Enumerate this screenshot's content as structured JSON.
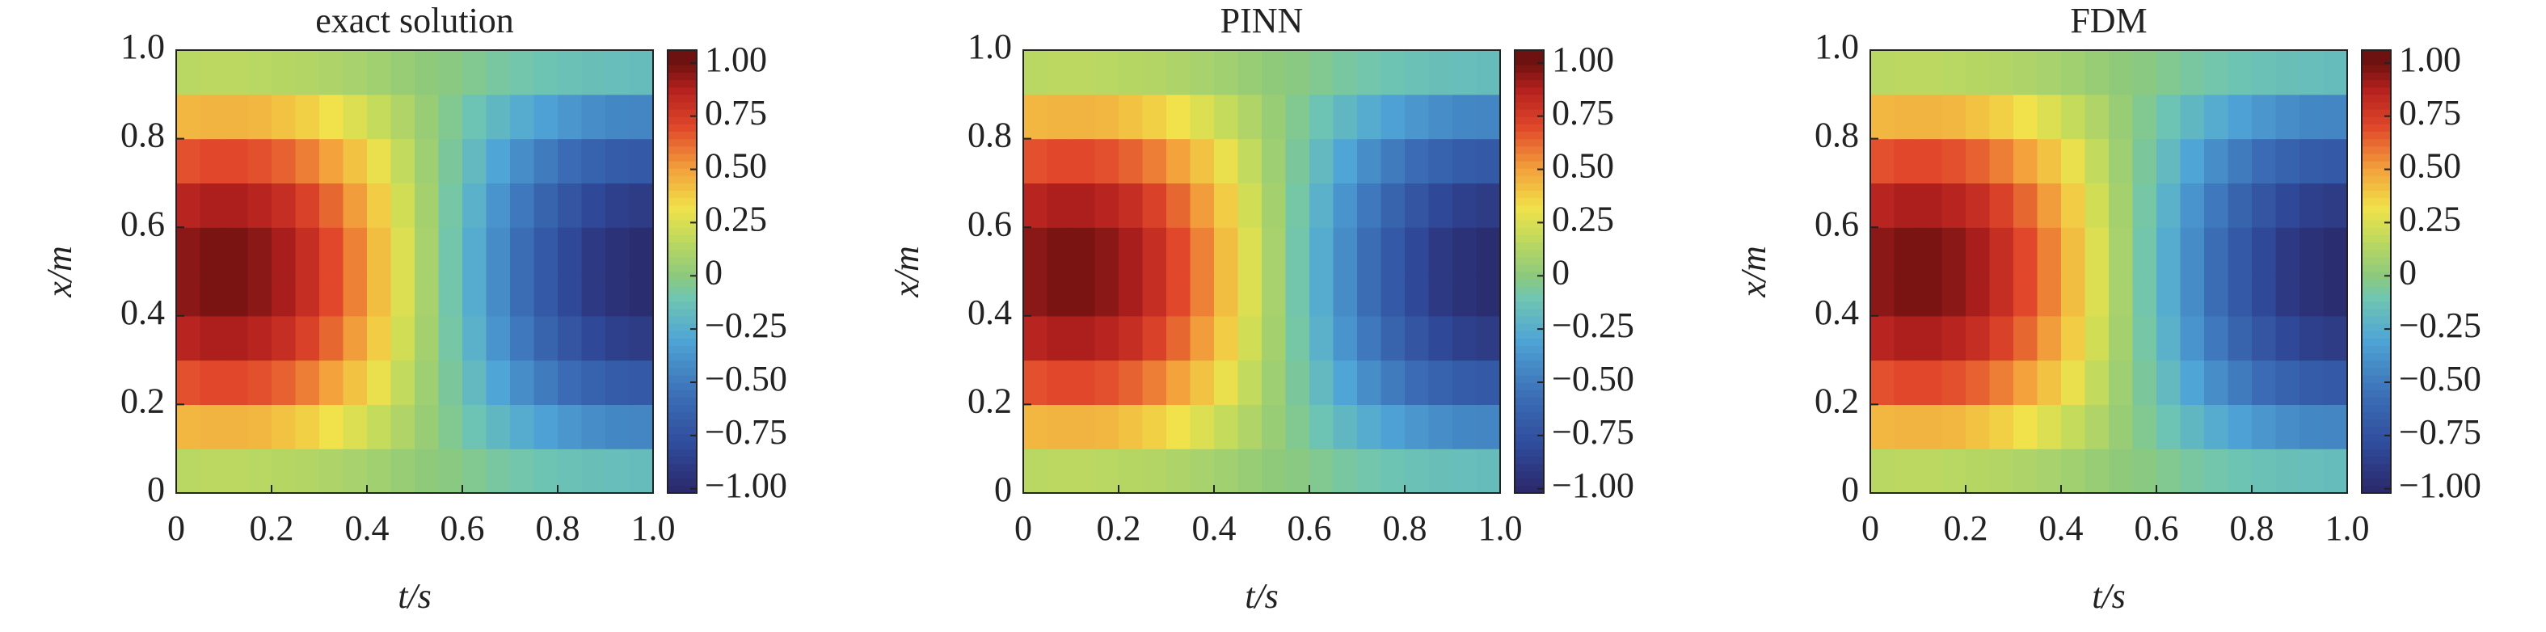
{
  "chart_data": [
    {
      "type": "heatmap",
      "title": "exact solution",
      "xlabel": "t/s",
      "ylabel": "x/m",
      "x": [
        0.025,
        0.075,
        0.125,
        0.175,
        0.225,
        0.275,
        0.325,
        0.375,
        0.425,
        0.475,
        0.525,
        0.575,
        0.625,
        0.675,
        0.725,
        0.775,
        0.825,
        0.875,
        0.925,
        0.975
      ],
      "y": [
        0.05,
        0.15,
        0.25,
        0.35,
        0.45,
        0.55,
        0.65,
        0.75,
        0.85,
        0.95
      ],
      "values": [
        [
          0.15,
          0.16,
          0.16,
          0.15,
          0.14,
          0.13,
          0.11,
          0.09,
          0.07,
          0.04,
          0.01,
          -0.01,
          -0.04,
          -0.07,
          -0.09,
          -0.11,
          -0.13,
          -0.14,
          -0.15,
          -0.16
        ],
        [
          0.44,
          0.45,
          0.45,
          0.44,
          0.41,
          0.37,
          0.32,
          0.26,
          0.19,
          0.12,
          0.04,
          -0.04,
          -0.12,
          -0.19,
          -0.26,
          -0.32,
          -0.37,
          -0.41,
          -0.44,
          -0.45
        ],
        [
          0.68,
          0.7,
          0.7,
          0.68,
          0.64,
          0.58,
          0.5,
          0.41,
          0.3,
          0.18,
          0.06,
          -0.06,
          -0.18,
          -0.3,
          -0.41,
          -0.5,
          -0.58,
          -0.64,
          -0.68,
          -0.7
        ],
        [
          0.86,
          0.89,
          0.89,
          0.86,
          0.81,
          0.73,
          0.63,
          0.51,
          0.38,
          0.23,
          0.08,
          -0.08,
          -0.23,
          -0.38,
          -0.51,
          -0.63,
          -0.73,
          -0.81,
          -0.86,
          -0.89
        ],
        [
          0.95,
          0.98,
          0.98,
          0.95,
          0.9,
          0.81,
          0.7,
          0.57,
          0.42,
          0.26,
          0.09,
          -0.09,
          -0.26,
          -0.42,
          -0.57,
          -0.7,
          -0.81,
          -0.9,
          -0.95,
          -0.98
        ],
        [
          0.95,
          0.98,
          0.98,
          0.95,
          0.9,
          0.81,
          0.7,
          0.57,
          0.42,
          0.26,
          0.09,
          -0.09,
          -0.26,
          -0.42,
          -0.57,
          -0.7,
          -0.81,
          -0.9,
          -0.95,
          -0.98
        ],
        [
          0.86,
          0.89,
          0.89,
          0.86,
          0.81,
          0.73,
          0.63,
          0.51,
          0.38,
          0.23,
          0.08,
          -0.08,
          -0.23,
          -0.38,
          -0.51,
          -0.63,
          -0.73,
          -0.81,
          -0.86,
          -0.89
        ],
        [
          0.68,
          0.7,
          0.7,
          0.68,
          0.64,
          0.58,
          0.5,
          0.41,
          0.3,
          0.18,
          0.06,
          -0.06,
          -0.18,
          -0.3,
          -0.41,
          -0.5,
          -0.58,
          -0.64,
          -0.68,
          -0.7
        ],
        [
          0.44,
          0.45,
          0.45,
          0.44,
          0.41,
          0.37,
          0.32,
          0.26,
          0.19,
          0.12,
          0.04,
          -0.04,
          -0.12,
          -0.19,
          -0.26,
          -0.32,
          -0.37,
          -0.41,
          -0.44,
          -0.45
        ],
        [
          0.15,
          0.16,
          0.16,
          0.15,
          0.14,
          0.13,
          0.11,
          0.09,
          0.07,
          0.04,
          0.01,
          -0.01,
          -0.04,
          -0.07,
          -0.09,
          -0.11,
          -0.13,
          -0.14,
          -0.15,
          -0.16
        ]
      ],
      "xlim": [
        0,
        1
      ],
      "ylim": [
        0,
        1
      ],
      "xticks": [
        0,
        0.2,
        0.4,
        0.6,
        0.8,
        {
          "value": 1,
          "label": "1.0"
        }
      ],
      "yticks": [
        0,
        0.2,
        0.4,
        0.6,
        0.8,
        {
          "value": 1,
          "label": "1.0"
        }
      ],
      "clim": [
        -1.02,
        1.06
      ],
      "cticks": [
        {
          "value": 1,
          "label": "1.00"
        },
        0.75,
        {
          "value": 0.5,
          "label": "0.50"
        },
        0.25,
        0,
        {
          "value": -0.25,
          "label": "−0.25"
        },
        {
          "value": -0.5,
          "label": "−0.50"
        },
        {
          "value": -0.75,
          "label": "−0.75"
        },
        {
          "value": -1,
          "label": "−1.00"
        }
      ],
      "colormap": [
        [
          -1,
          "#2b2a6c"
        ],
        [
          -0.8,
          "#2f4a9a"
        ],
        [
          -0.55,
          "#3c70b7"
        ],
        [
          -0.3,
          "#4fa5d6"
        ],
        [
          -0.1,
          "#70c6b0"
        ],
        [
          0,
          "#8cc97c"
        ],
        [
          0.2,
          "#c8dc5a"
        ],
        [
          0.32,
          "#f1e14a"
        ],
        [
          0.5,
          "#f3a23c"
        ],
        [
          0.7,
          "#e1472b"
        ],
        [
          0.88,
          "#b3201e"
        ],
        [
          1,
          "#6d1210"
        ]
      ]
    },
    {
      "type": "heatmap",
      "title": "PINN",
      "xlabel": "t/s",
      "ylabel": "x/m",
      "x": [
        0.025,
        0.075,
        0.125,
        0.175,
        0.225,
        0.275,
        0.325,
        0.375,
        0.425,
        0.475,
        0.525,
        0.575,
        0.625,
        0.675,
        0.725,
        0.775,
        0.825,
        0.875,
        0.925,
        0.975
      ],
      "y": [
        0.05,
        0.15,
        0.25,
        0.35,
        0.45,
        0.55,
        0.65,
        0.75,
        0.85,
        0.95
      ],
      "values": [
        [
          0.15,
          0.16,
          0.16,
          0.15,
          0.14,
          0.13,
          0.11,
          0.09,
          0.07,
          0.04,
          0.01,
          -0.01,
          -0.04,
          -0.07,
          -0.09,
          -0.11,
          -0.13,
          -0.14,
          -0.15,
          -0.16
        ],
        [
          0.44,
          0.45,
          0.45,
          0.44,
          0.41,
          0.37,
          0.32,
          0.26,
          0.19,
          0.12,
          0.04,
          -0.04,
          -0.12,
          -0.19,
          -0.26,
          -0.32,
          -0.37,
          -0.41,
          -0.44,
          -0.45
        ],
        [
          0.68,
          0.7,
          0.7,
          0.68,
          0.64,
          0.58,
          0.5,
          0.41,
          0.3,
          0.18,
          0.06,
          -0.06,
          -0.18,
          -0.3,
          -0.41,
          -0.5,
          -0.58,
          -0.64,
          -0.68,
          -0.7
        ],
        [
          0.86,
          0.89,
          0.89,
          0.86,
          0.81,
          0.73,
          0.63,
          0.51,
          0.38,
          0.23,
          0.08,
          -0.08,
          -0.23,
          -0.38,
          -0.51,
          -0.63,
          -0.73,
          -0.81,
          -0.86,
          -0.89
        ],
        [
          0.95,
          0.98,
          0.98,
          0.95,
          0.9,
          0.81,
          0.7,
          0.57,
          0.42,
          0.26,
          0.09,
          -0.09,
          -0.26,
          -0.42,
          -0.57,
          -0.7,
          -0.81,
          -0.9,
          -0.95,
          -0.98
        ],
        [
          0.95,
          0.98,
          0.98,
          0.95,
          0.9,
          0.81,
          0.7,
          0.57,
          0.42,
          0.26,
          0.09,
          -0.09,
          -0.26,
          -0.42,
          -0.57,
          -0.7,
          -0.81,
          -0.9,
          -0.95,
          -0.98
        ],
        [
          0.86,
          0.89,
          0.89,
          0.86,
          0.81,
          0.73,
          0.63,
          0.51,
          0.38,
          0.23,
          0.08,
          -0.08,
          -0.23,
          -0.38,
          -0.51,
          -0.63,
          -0.73,
          -0.81,
          -0.86,
          -0.89
        ],
        [
          0.68,
          0.7,
          0.7,
          0.68,
          0.64,
          0.58,
          0.5,
          0.41,
          0.3,
          0.18,
          0.06,
          -0.06,
          -0.18,
          -0.3,
          -0.41,
          -0.5,
          -0.58,
          -0.64,
          -0.68,
          -0.7
        ],
        [
          0.44,
          0.45,
          0.45,
          0.44,
          0.41,
          0.37,
          0.32,
          0.26,
          0.19,
          0.12,
          0.04,
          -0.04,
          -0.12,
          -0.19,
          -0.26,
          -0.32,
          -0.37,
          -0.41,
          -0.44,
          -0.45
        ],
        [
          0.15,
          0.16,
          0.16,
          0.15,
          0.14,
          0.13,
          0.11,
          0.09,
          0.07,
          0.04,
          0.01,
          -0.01,
          -0.04,
          -0.07,
          -0.09,
          -0.11,
          -0.13,
          -0.14,
          -0.15,
          -0.16
        ]
      ],
      "xlim": [
        0,
        1
      ],
      "ylim": [
        0,
        1
      ],
      "xticks": [
        0,
        0.2,
        0.4,
        0.6,
        0.8,
        {
          "value": 1,
          "label": "1.0"
        }
      ],
      "yticks": [
        0,
        0.2,
        0.4,
        0.6,
        0.8,
        {
          "value": 1,
          "label": "1.0"
        }
      ],
      "clim": [
        -1.02,
        1.06
      ],
      "cticks": [
        {
          "value": 1,
          "label": "1.00"
        },
        0.75,
        {
          "value": 0.5,
          "label": "0.50"
        },
        0.25,
        0,
        {
          "value": -0.25,
          "label": "−0.25"
        },
        {
          "value": -0.5,
          "label": "−0.50"
        },
        {
          "value": -0.75,
          "label": "−0.75"
        },
        {
          "value": -1,
          "label": "−1.00"
        }
      ],
      "colormap": [
        [
          -1,
          "#2b2a6c"
        ],
        [
          -0.8,
          "#2f4a9a"
        ],
        [
          -0.55,
          "#3c70b7"
        ],
        [
          -0.3,
          "#4fa5d6"
        ],
        [
          -0.1,
          "#70c6b0"
        ],
        [
          0,
          "#8cc97c"
        ],
        [
          0.2,
          "#c8dc5a"
        ],
        [
          0.32,
          "#f1e14a"
        ],
        [
          0.5,
          "#f3a23c"
        ],
        [
          0.7,
          "#e1472b"
        ],
        [
          0.88,
          "#b3201e"
        ],
        [
          1,
          "#6d1210"
        ]
      ]
    },
    {
      "type": "heatmap",
      "title": "FDM",
      "xlabel": "t/s",
      "ylabel": "x/m",
      "x": [
        0.025,
        0.075,
        0.125,
        0.175,
        0.225,
        0.275,
        0.325,
        0.375,
        0.425,
        0.475,
        0.525,
        0.575,
        0.625,
        0.675,
        0.725,
        0.775,
        0.825,
        0.875,
        0.925,
        0.975
      ],
      "y": [
        0.05,
        0.15,
        0.25,
        0.35,
        0.45,
        0.55,
        0.65,
        0.75,
        0.85,
        0.95
      ],
      "values": [
        [
          0.15,
          0.16,
          0.16,
          0.15,
          0.14,
          0.13,
          0.11,
          0.09,
          0.07,
          0.04,
          0.01,
          -0.01,
          -0.04,
          -0.07,
          -0.09,
          -0.11,
          -0.13,
          -0.14,
          -0.15,
          -0.16
        ],
        [
          0.44,
          0.45,
          0.45,
          0.44,
          0.41,
          0.37,
          0.32,
          0.26,
          0.19,
          0.12,
          0.04,
          -0.04,
          -0.12,
          -0.19,
          -0.26,
          -0.32,
          -0.37,
          -0.41,
          -0.44,
          -0.45
        ],
        [
          0.68,
          0.7,
          0.7,
          0.68,
          0.64,
          0.58,
          0.5,
          0.41,
          0.3,
          0.18,
          0.06,
          -0.06,
          -0.18,
          -0.3,
          -0.41,
          -0.5,
          -0.58,
          -0.64,
          -0.68,
          -0.7
        ],
        [
          0.86,
          0.89,
          0.89,
          0.86,
          0.81,
          0.73,
          0.63,
          0.51,
          0.38,
          0.23,
          0.08,
          -0.08,
          -0.23,
          -0.38,
          -0.51,
          -0.63,
          -0.73,
          -0.81,
          -0.86,
          -0.89
        ],
        [
          0.95,
          0.98,
          0.98,
          0.95,
          0.9,
          0.81,
          0.7,
          0.57,
          0.42,
          0.26,
          0.09,
          -0.09,
          -0.26,
          -0.42,
          -0.57,
          -0.7,
          -0.81,
          -0.9,
          -0.95,
          -0.98
        ],
        [
          0.95,
          0.98,
          0.98,
          0.95,
          0.9,
          0.81,
          0.7,
          0.57,
          0.42,
          0.26,
          0.09,
          -0.09,
          -0.26,
          -0.42,
          -0.57,
          -0.7,
          -0.81,
          -0.9,
          -0.95,
          -0.98
        ],
        [
          0.86,
          0.89,
          0.89,
          0.86,
          0.81,
          0.73,
          0.63,
          0.51,
          0.38,
          0.23,
          0.08,
          -0.08,
          -0.23,
          -0.38,
          -0.51,
          -0.63,
          -0.73,
          -0.81,
          -0.86,
          -0.89
        ],
        [
          0.68,
          0.7,
          0.7,
          0.68,
          0.64,
          0.58,
          0.5,
          0.41,
          0.3,
          0.18,
          0.06,
          -0.06,
          -0.18,
          -0.3,
          -0.41,
          -0.5,
          -0.58,
          -0.64,
          -0.68,
          -0.7
        ],
        [
          0.44,
          0.45,
          0.45,
          0.44,
          0.41,
          0.37,
          0.32,
          0.26,
          0.19,
          0.12,
          0.04,
          -0.04,
          -0.12,
          -0.19,
          -0.26,
          -0.32,
          -0.37,
          -0.41,
          -0.44,
          -0.45
        ],
        [
          0.15,
          0.16,
          0.16,
          0.15,
          0.14,
          0.13,
          0.11,
          0.09,
          0.07,
          0.04,
          0.01,
          -0.01,
          -0.04,
          -0.07,
          -0.09,
          -0.11,
          -0.13,
          -0.14,
          -0.15,
          -0.16
        ]
      ],
      "xlim": [
        0,
        1
      ],
      "ylim": [
        0,
        1
      ],
      "xticks": [
        0,
        0.2,
        0.4,
        0.6,
        0.8,
        {
          "value": 1,
          "label": "1.0"
        }
      ],
      "yticks": [
        0,
        0.2,
        0.4,
        0.6,
        0.8,
        {
          "value": 1,
          "label": "1.0"
        }
      ],
      "clim": [
        -1.02,
        1.06
      ],
      "cticks": [
        {
          "value": 1,
          "label": "1.00"
        },
        0.75,
        {
          "value": 0.5,
          "label": "0.50"
        },
        0.25,
        0,
        {
          "value": -0.25,
          "label": "−0.25"
        },
        {
          "value": -0.5,
          "label": "−0.50"
        },
        {
          "value": -0.75,
          "label": "−0.75"
        },
        {
          "value": -1,
          "label": "−1.00"
        }
      ],
      "colormap": [
        [
          -1,
          "#2b2a6c"
        ],
        [
          -0.8,
          "#2f4a9a"
        ],
        [
          -0.55,
          "#3c70b7"
        ],
        [
          -0.3,
          "#4fa5d6"
        ],
        [
          -0.1,
          "#70c6b0"
        ],
        [
          0,
          "#8cc97c"
        ],
        [
          0.2,
          "#c8dc5a"
        ],
        [
          0.32,
          "#f1e14a"
        ],
        [
          0.5,
          "#f3a23c"
        ],
        [
          0.7,
          "#e1472b"
        ],
        [
          0.88,
          "#b3201e"
        ],
        [
          1,
          "#6d1210"
        ]
      ]
    }
  ]
}
